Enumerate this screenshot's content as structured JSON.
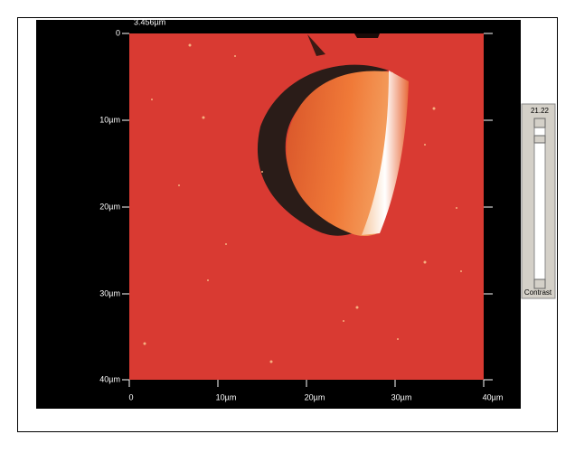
{
  "scale_label": "3.456µm",
  "y_axis_labels": [
    "0",
    "10µm",
    "20µm",
    "30µm",
    "40µm"
  ],
  "x_axis_labels": [
    "0",
    "10µm",
    "20µm",
    "30µm",
    "40µm"
  ],
  "contrast": {
    "value": "21.22",
    "label": "Contrast"
  }
}
